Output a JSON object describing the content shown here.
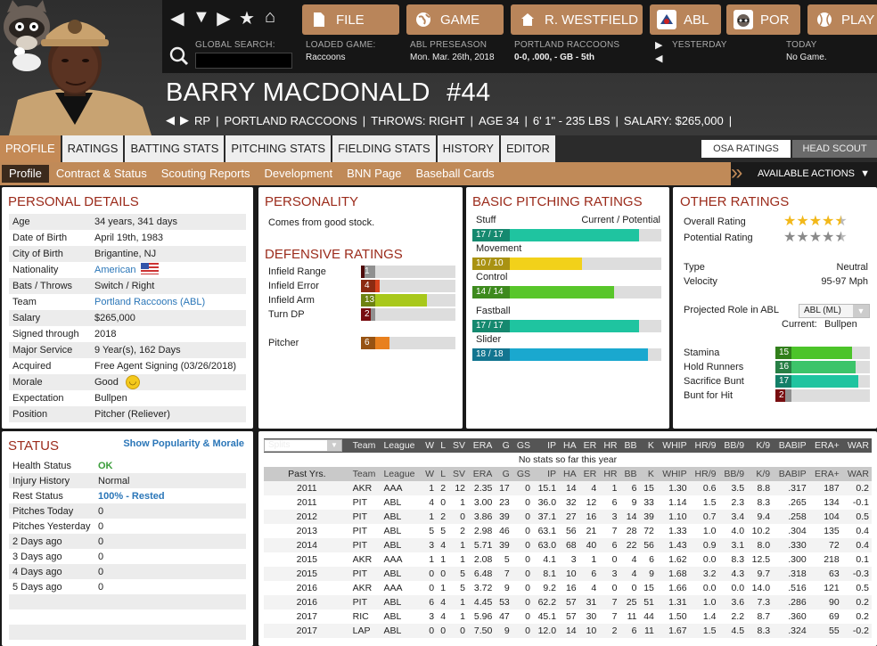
{
  "nav": {
    "buttons": [
      {
        "label": "FILE",
        "icon": "file-icon"
      },
      {
        "label": "GAME",
        "icon": "globe-icon"
      },
      {
        "label": "R. WESTFIELD",
        "icon": "home-icon"
      },
      {
        "label": "ABL",
        "icon": "league-logo-icon"
      },
      {
        "label": "POR",
        "icon": "team-logo-icon"
      },
      {
        "label": "PLAY",
        "icon": "baseball-icon"
      }
    ]
  },
  "info": {
    "search_label": "GLOBAL SEARCH:",
    "loaded_label": "LOADED GAME:",
    "loaded_value": "Raccoons",
    "season_label": "ABL PRESEASON",
    "season_value": "Mon. Mar. 26th, 2018",
    "team_label": "PORTLAND RACCOONS",
    "team_value": "0-0, .000, - GB - 5th",
    "yesterday_label": "YESTERDAY",
    "today_label": "TODAY",
    "today_value": "No Game."
  },
  "player": {
    "name": "BARRY MACDONALD",
    "number": "#44",
    "pos": "RP",
    "team": "PORTLAND RACCOONS",
    "throws": "THROWS: RIGHT",
    "age": "AGE 34",
    "size": "6' 1\" - 235 LBS",
    "salary": "SALARY: $265,000"
  },
  "tabs": [
    "PROFILE",
    "RATINGS",
    "BATTING STATS",
    "PITCHING STATS",
    "FIELDING STATS",
    "HISTORY",
    "EDITOR"
  ],
  "right_tabs": {
    "osa": "OSA RATINGS",
    "scout": "HEAD SCOUT"
  },
  "subtabs": [
    "Profile",
    "Contract & Status",
    "Scouting Reports",
    "Development",
    "BNN Page",
    "Baseball Cards"
  ],
  "actions_label": "AVAILABLE ACTIONS",
  "personal": {
    "title": "PERSONAL DETAILS",
    "rows": [
      {
        "k": "Age",
        "v": "34 years, 341 days"
      },
      {
        "k": "Date of Birth",
        "v": "April 19th, 1983"
      },
      {
        "k": "City of Birth",
        "v": "Brigantine, NJ"
      },
      {
        "k": "Nationality",
        "v": "American"
      },
      {
        "k": "Bats / Throws",
        "v": "Switch / Right"
      },
      {
        "k": "Team",
        "v": "Portland Raccoons (ABL)"
      },
      {
        "k": "Salary",
        "v": "$265,000"
      },
      {
        "k": "Signed through",
        "v": "2018"
      },
      {
        "k": "Major Service",
        "v": "9 Year(s), 162 Days"
      },
      {
        "k": "Acquired",
        "v": "Free Agent Signing (03/26/2018)"
      },
      {
        "k": "Morale",
        "v": "Good"
      },
      {
        "k": "Expectation",
        "v": "Bullpen"
      },
      {
        "k": "Position",
        "v": "Pitcher (Reliever)"
      }
    ]
  },
  "personality": {
    "title": "PERSONALITY",
    "text": "Comes from good stock."
  },
  "defensive": {
    "title": "DEFENSIVE RATINGS",
    "rows": [
      {
        "label": "Infield Range",
        "value": "1",
        "level": 0.04,
        "color": "#7a1010"
      },
      {
        "label": "Infield Error",
        "value": "4",
        "level": 0.2,
        "color": "#d8431d"
      },
      {
        "label": "Infield Arm",
        "value": "13",
        "level": 0.7,
        "color": "#a8c81a"
      },
      {
        "label": "Turn DP",
        "value": "2",
        "level": 0.1,
        "color": "#b8141a"
      },
      {
        "label": "Pitcher",
        "value": "6",
        "level": 0.3,
        "color": "#e8801e"
      }
    ]
  },
  "basic_pitching": {
    "title": "BASIC PITCHING RATINGS",
    "header_right": "Current / Potential",
    "rows": [
      {
        "label": "Stuff",
        "value": "17 / 17",
        "level": 0.88,
        "color": "#1fc4a0"
      },
      {
        "label": "Movement",
        "value": "10 / 10",
        "level": 0.58,
        "color": "#f2d11a"
      },
      {
        "label": "Control",
        "value": "14 / 14",
        "level": 0.75,
        "color": "#58c62a"
      },
      {
        "label": "Fastball",
        "value": "17 / 17",
        "level": 0.88,
        "color": "#1fc4a0"
      },
      {
        "label": "Slider",
        "value": "18 / 18",
        "level": 0.93,
        "color": "#1aa8cf"
      }
    ]
  },
  "other": {
    "title": "OTHER RATINGS",
    "overall_label": "Overall Rating",
    "overall_stars": 4.5,
    "potential_label": "Potential Rating",
    "potential_stars": 4.5,
    "type_label": "Type",
    "type_value": "Neutral",
    "velocity_label": "Velocity",
    "velocity_value": "95-97 Mph",
    "role_label": "Projected Role in ABL",
    "role_select": "ABL (ML)",
    "current_label": "Current:",
    "current_value": "Bullpen",
    "bars": [
      {
        "label": "Stamina",
        "value": "15",
        "level": 0.81,
        "color": "#4cc42a"
      },
      {
        "label": "Hold Runners",
        "value": "16",
        "level": 0.85,
        "color": "#3cc46a"
      },
      {
        "label": "Sacrifice Bunt",
        "value": "17",
        "level": 0.88,
        "color": "#1fc4a0"
      },
      {
        "label": "Bunt for Hit",
        "value": "2",
        "level": 0.1,
        "color": "#b8141a"
      }
    ]
  },
  "status": {
    "title": "STATUS",
    "link": "Show Popularity & Morale",
    "rows": [
      {
        "k": "Health Status",
        "v": "OK"
      },
      {
        "k": "Injury History",
        "v": "Normal"
      },
      {
        "k": "Rest Status",
        "v": "100% - Rested"
      },
      {
        "k": "Pitches Today",
        "v": "0"
      },
      {
        "k": "Pitches Yesterday",
        "v": "0"
      },
      {
        "k": "2 Days ago",
        "v": "0"
      },
      {
        "k": "3 Days ago",
        "v": "0"
      },
      {
        "k": "4 Days ago",
        "v": "0"
      },
      {
        "k": "5 Days ago",
        "v": "0"
      }
    ]
  },
  "stats": {
    "splits_label": "Splits",
    "columns": [
      "Team",
      "League",
      "W",
      "L",
      "SV",
      "ERA",
      "G",
      "GS",
      "IP",
      "HA",
      "ER",
      "HR",
      "BB",
      "K",
      "WHIP",
      "HR/9",
      "BB/9",
      "K/9",
      "BABIP",
      "ERA+",
      "WAR"
    ],
    "no_stats": "No stats so far this year",
    "past_label": "Past Yrs.",
    "rows": [
      [
        "2011",
        "AKR",
        "AAA",
        "1",
        "2",
        "12",
        "2.35",
        "17",
        "0",
        "15.1",
        "14",
        "4",
        "1",
        "6",
        "15",
        "1.30",
        "0.6",
        "3.5",
        "8.8",
        ".317",
        "187",
        "0.2"
      ],
      [
        "2011",
        "PIT",
        "ABL",
        "4",
        "0",
        "1",
        "3.00",
        "23",
        "0",
        "36.0",
        "32",
        "12",
        "6",
        "9",
        "33",
        "1.14",
        "1.5",
        "2.3",
        "8.3",
        ".265",
        "134",
        "-0.1"
      ],
      [
        "2012",
        "PIT",
        "ABL",
        "1",
        "2",
        "0",
        "3.86",
        "39",
        "0",
        "37.1",
        "27",
        "16",
        "3",
        "14",
        "39",
        "1.10",
        "0.7",
        "3.4",
        "9.4",
        ".258",
        "104",
        "0.5"
      ],
      [
        "2013",
        "PIT",
        "ABL",
        "5",
        "5",
        "2",
        "2.98",
        "46",
        "0",
        "63.1",
        "56",
        "21",
        "7",
        "28",
        "72",
        "1.33",
        "1.0",
        "4.0",
        "10.2",
        ".304",
        "135",
        "0.4"
      ],
      [
        "2014",
        "PIT",
        "ABL",
        "3",
        "4",
        "1",
        "5.71",
        "39",
        "0",
        "63.0",
        "68",
        "40",
        "6",
        "22",
        "56",
        "1.43",
        "0.9",
        "3.1",
        "8.0",
        ".330",
        "72",
        "0.4"
      ],
      [
        "2015",
        "AKR",
        "AAA",
        "1",
        "1",
        "1",
        "2.08",
        "5",
        "0",
        "4.1",
        "3",
        "1",
        "0",
        "4",
        "6",
        "1.62",
        "0.0",
        "8.3",
        "12.5",
        ".300",
        "218",
        "0.1"
      ],
      [
        "2015",
        "PIT",
        "ABL",
        "0",
        "0",
        "5",
        "6.48",
        "7",
        "0",
        "8.1",
        "10",
        "6",
        "3",
        "4",
        "9",
        "1.68",
        "3.2",
        "4.3",
        "9.7",
        ".318",
        "63",
        "-0.3"
      ],
      [
        "2016",
        "AKR",
        "AAA",
        "0",
        "1",
        "5",
        "3.72",
        "9",
        "0",
        "9.2",
        "16",
        "4",
        "0",
        "0",
        "15",
        "1.66",
        "0.0",
        "0.0",
        "14.0",
        ".516",
        "121",
        "0.5"
      ],
      [
        "2016",
        "PIT",
        "ABL",
        "6",
        "4",
        "1",
        "4.45",
        "53",
        "0",
        "62.2",
        "57",
        "31",
        "7",
        "25",
        "51",
        "1.31",
        "1.0",
        "3.6",
        "7.3",
        ".286",
        "90",
        "0.2"
      ],
      [
        "2017",
        "RIC",
        "ABL",
        "3",
        "4",
        "1",
        "5.96",
        "47",
        "0",
        "45.1",
        "57",
        "30",
        "7",
        "11",
        "44",
        "1.50",
        "1.4",
        "2.2",
        "8.7",
        ".360",
        "69",
        "0.2"
      ],
      [
        "2017",
        "LAP",
        "ABL",
        "0",
        "0",
        "0",
        "7.50",
        "9",
        "0",
        "12.0",
        "14",
        "10",
        "2",
        "6",
        "11",
        "1.67",
        "1.5",
        "4.5",
        "8.3",
        ".324",
        "55",
        "-0.2"
      ]
    ]
  }
}
